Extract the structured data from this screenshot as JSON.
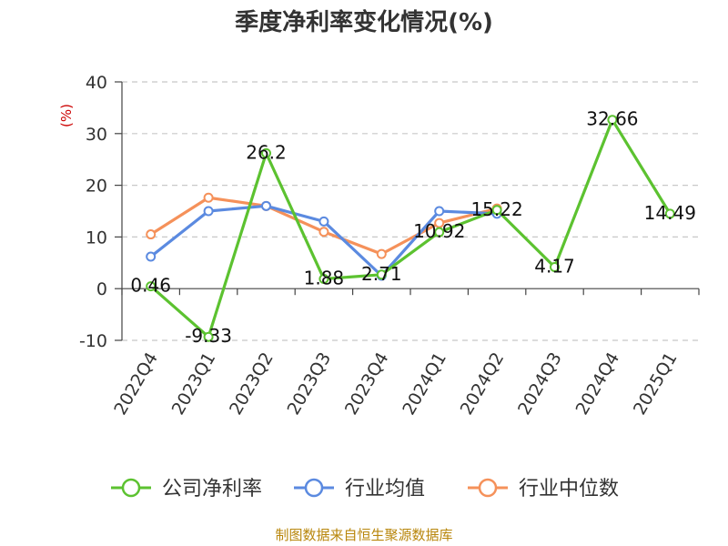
{
  "chart_data": {
    "type": "line",
    "title": "季度净利率变化情况(%)",
    "ylabel": "(%)",
    "xlabel": "",
    "categories": [
      "2022Q4",
      "2023Q1",
      "2023Q2",
      "2023Q3",
      "2023Q4",
      "2024Q1",
      "2024Q2",
      "2024Q3",
      "2024Q4",
      "2025Q1"
    ],
    "ylim": [
      -10,
      40
    ],
    "yticks": [
      "-10",
      "0",
      "10",
      "20",
      "30",
      "40"
    ],
    "grid": true,
    "legend_position": "bottom",
    "series": [
      {
        "name": "公司净利率",
        "color": "#5cc230",
        "values": [
          0.46,
          -9.33,
          26.2,
          1.88,
          2.71,
          10.92,
          15.22,
          4.17,
          32.66,
          14.49
        ],
        "labels": [
          "0.46",
          "-9.33",
          "26.2",
          "1.88",
          "2.71",
          "10.92",
          "15.22",
          "4.17",
          "32.66",
          "14.49"
        ]
      },
      {
        "name": "行业均值",
        "color": "#5b8ae0",
        "values": [
          6.2,
          15.0,
          16.0,
          13.0,
          2.5,
          15.0,
          14.5,
          null,
          null,
          null
        ]
      },
      {
        "name": "行业中位数",
        "color": "#f5915a",
        "values": [
          10.5,
          17.6,
          16.0,
          11.0,
          6.7,
          12.7,
          15.5,
          null,
          null,
          null
        ]
      }
    ],
    "source": "制图数据来自恒生聚源数据库"
  }
}
